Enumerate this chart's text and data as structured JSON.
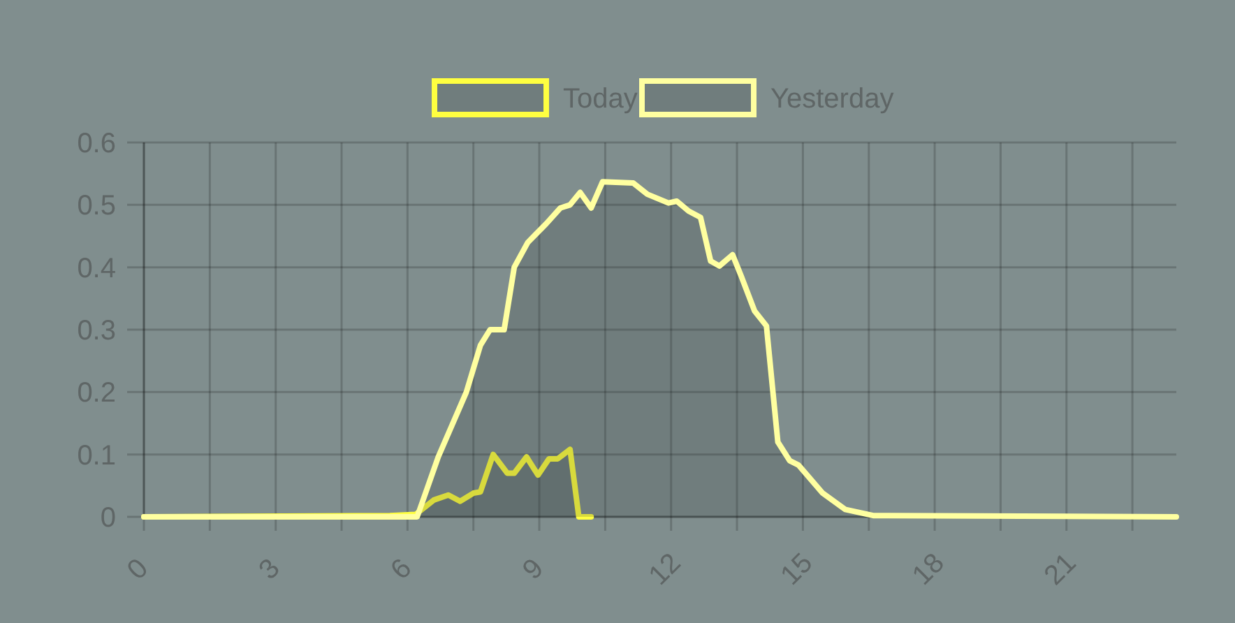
{
  "chart_data": {
    "type": "area",
    "legend": "top",
    "grid": true,
    "marker": "none",
    "line_style": "solid",
    "xlim": [
      0,
      23.5
    ],
    "ylim": [
      0,
      0.6
    ],
    "xticks": [
      0,
      {
        "value": 1.5,
        "label": null
      },
      3,
      {
        "value": 4.5,
        "label": null
      },
      6,
      {
        "value": 7.5,
        "label": null
      },
      9,
      {
        "value": 10.5,
        "label": null
      },
      12,
      {
        "value": 13.5,
        "label": null
      },
      15,
      {
        "value": 16.5,
        "label": null
      },
      18,
      {
        "value": 19.5,
        "label": null
      },
      21,
      {
        "value": 22.5,
        "label": null
      }
    ],
    "yticks": [
      0,
      0.1,
      0.2,
      0.3,
      0.4,
      0.5,
      0.6
    ],
    "series": [
      {
        "name": "Today",
        "color": "#ffff40",
        "x": [
          0,
          5.6,
          6.19,
          6.6,
          6.93,
          7.2,
          7.5,
          7.66,
          7.95,
          8.27,
          8.43,
          8.71,
          8.97,
          9.22,
          9.42,
          9.7,
          9.9,
          10.18
        ],
        "values": [
          0,
          0.002,
          0.004,
          0.027,
          0.035,
          0.025,
          0.038,
          0.04,
          0.1,
          0.07,
          0.07,
          0.096,
          0.067,
          0.093,
          0.093,
          0.108,
          0,
          0
        ]
      },
      {
        "name": "Yesterday",
        "color": "#ffffa0",
        "x": [
          0,
          6.22,
          6.7,
          7.34,
          7.66,
          7.88,
          8.2,
          8.43,
          8.74,
          9.16,
          9.48,
          9.7,
          9.93,
          10.18,
          10.44,
          11.14,
          11.46,
          11.94,
          12.13,
          12.4,
          12.67,
          12.9,
          13.1,
          13.4,
          13.6,
          13.9,
          14.17,
          14.43,
          14.7,
          14.9,
          15.45,
          15.96,
          16.6,
          23.5
        ],
        "values": [
          0,
          0,
          0.096,
          0.2,
          0.275,
          0.3,
          0.3,
          0.4,
          0.44,
          0.47,
          0.495,
          0.5,
          0.52,
          0.495,
          0.537,
          0.535,
          0.517,
          0.503,
          0.506,
          0.49,
          0.48,
          0.41,
          0.402,
          0.42,
          0.385,
          0.33,
          0.306,
          0.12,
          0.09,
          0.083,
          0.038,
          0.012,
          0.002,
          0
        ]
      }
    ]
  }
}
